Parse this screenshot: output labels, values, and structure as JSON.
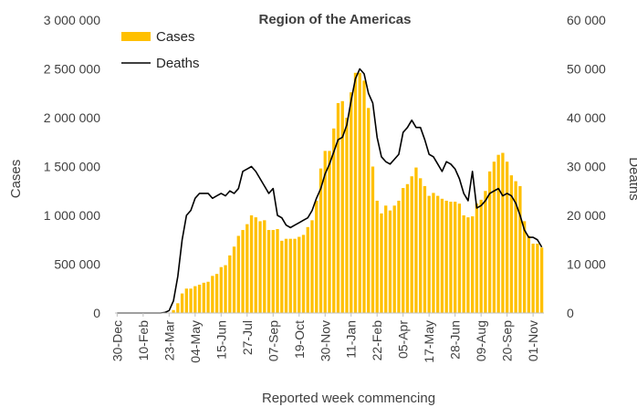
{
  "chart_data": {
    "type": "bar",
    "title": "Region of the Americas",
    "xlabel": "Reported week commencing",
    "ylabel": "Cases",
    "y2label": "Deaths",
    "ylim": [
      0,
      3000000
    ],
    "y2lim": [
      0,
      60000
    ],
    "y_ticks": [
      "0",
      "500 000",
      "1 000 000",
      "1 500 000",
      "2 000 000",
      "2 500 000",
      "3 000 000"
    ],
    "y2_ticks": [
      "0",
      "10 000",
      "20 000",
      "30 000",
      "40 000",
      "50 000",
      "60 000"
    ],
    "x_tick_labels": [
      "30-Dec",
      "10-Feb",
      "23-Mar",
      "04-May",
      "15-Jun",
      "27-Jul",
      "07-Sep",
      "19-Oct",
      "30-Nov",
      "11-Jan",
      "22-Feb",
      "05-Apr",
      "17-May",
      "28-Jun",
      "09-Aug",
      "20-Sep",
      "01-Nov"
    ],
    "x_tick_every": 6,
    "grid": false,
    "legend": "top-left",
    "colors": {
      "cases": "#FFC000",
      "deaths": "#000000"
    },
    "series": [
      {
        "name": "Cases",
        "type": "bar",
        "axis": "left",
        "values": [
          0,
          0,
          0,
          0,
          0,
          0,
          0,
          0,
          0,
          0,
          0,
          0,
          5000,
          30000,
          100000,
          200000,
          250000,
          250000,
          275000,
          290000,
          310000,
          320000,
          380000,
          400000,
          470000,
          490000,
          590000,
          680000,
          790000,
          850000,
          910000,
          1000000,
          980000,
          940000,
          950000,
          850000,
          850000,
          860000,
          740000,
          760000,
          760000,
          760000,
          780000,
          800000,
          880000,
          950000,
          1150000,
          1480000,
          1660000,
          1660000,
          1890000,
          2150000,
          2170000,
          2000000,
          2260000,
          2460000,
          2460000,
          2380000,
          2100000,
          1500000,
          1150000,
          1020000,
          1100000,
          1050000,
          1100000,
          1150000,
          1280000,
          1320000,
          1400000,
          1490000,
          1380000,
          1300000,
          1200000,
          1230000,
          1200000,
          1170000,
          1150000,
          1140000,
          1140000,
          1120000,
          1000000,
          980000,
          990000,
          1120000,
          1160000,
          1250000,
          1450000,
          1550000,
          1620000,
          1640000,
          1550000,
          1410000,
          1350000,
          1300000,
          940000,
          790000,
          710000,
          710000,
          670000
        ]
      },
      {
        "name": "Deaths",
        "type": "line",
        "axis": "right",
        "values": [
          0,
          0,
          0,
          0,
          0,
          0,
          0,
          0,
          0,
          0,
          0,
          100,
          500,
          2500,
          7500,
          15000,
          20000,
          21000,
          23500,
          24500,
          24500,
          24500,
          23500,
          24000,
          24500,
          24000,
          25000,
          24500,
          25500,
          29000,
          29500,
          30000,
          29000,
          27500,
          26000,
          24500,
          25500,
          20000,
          19500,
          18000,
          17500,
          18000,
          18500,
          19000,
          19500,
          21000,
          23500,
          25500,
          28500,
          30500,
          33000,
          35500,
          36000,
          38500,
          43500,
          48000,
          50000,
          49000,
          45000,
          43000,
          36000,
          32000,
          31000,
          30500,
          31500,
          32500,
          37000,
          38000,
          39500,
          38000,
          38000,
          35500,
          32500,
          32000,
          30500,
          29000,
          31000,
          30500,
          29500,
          27500,
          24500,
          23000,
          29000,
          21500,
          22000,
          23000,
          24500,
          25000,
          25500,
          24000,
          24500,
          24000,
          22500,
          20000,
          17000,
          15500,
          15500,
          15000,
          13500
        ]
      }
    ]
  }
}
